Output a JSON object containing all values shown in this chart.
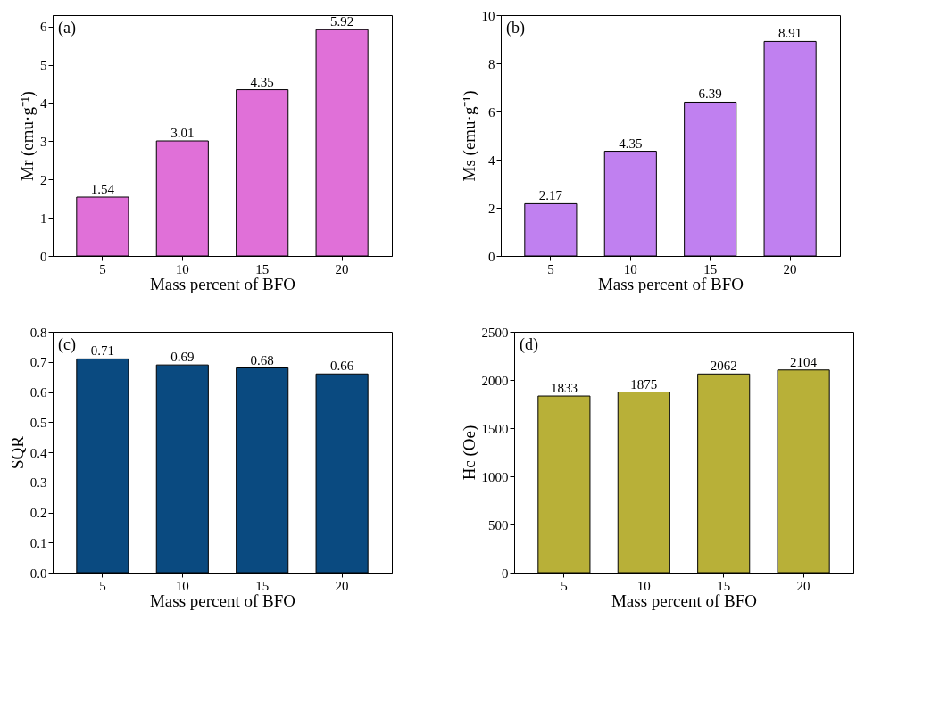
{
  "chart_data": [
    {
      "type": "bar",
      "categories": [
        "5",
        "10",
        "15",
        "20"
      ],
      "values": [
        1.54,
        3.01,
        4.35,
        5.92
      ],
      "color": "#e070d8",
      "xlabel": "Mass percent of BFO",
      "ylabel": "Mr (emu·g⁻¹)",
      "ylim": [
        0,
        6.3
      ],
      "yticks": [
        0,
        1,
        2,
        3,
        4,
        5,
        6
      ],
      "data_labels": true,
      "annotations": [
        "(a)"
      ]
    },
    {
      "type": "bar",
      "categories": [
        "5",
        "10",
        "15",
        "20"
      ],
      "values": [
        2.17,
        4.35,
        6.39,
        8.91
      ],
      "color": "#c080f0",
      "xlabel": "Mass percent of BFO",
      "ylabel": "Ms (emu·g⁻¹)",
      "ylim": [
        0,
        10
      ],
      "yticks": [
        0,
        2,
        4,
        6,
        8,
        10
      ],
      "data_labels": true,
      "annotations": [
        "(b)"
      ]
    },
    {
      "type": "bar",
      "categories": [
        "5",
        "10",
        "15",
        "20"
      ],
      "values": [
        0.71,
        0.69,
        0.68,
        0.66
      ],
      "color": "#0a4a80",
      "xlabel": "Mass percent of BFO",
      "ylabel": "SQR",
      "ylim": [
        0,
        0.8
      ],
      "yticks": [
        {
          "value": 0,
          "label": "0.0"
        },
        0.1,
        0.2,
        0.3,
        0.4,
        0.5,
        0.6,
        0.7,
        0.8
      ],
      "data_labels": true,
      "annotations": [
        "(c)"
      ]
    },
    {
      "type": "bar",
      "categories": [
        "5",
        "10",
        "15",
        "20"
      ],
      "values": [
        1833,
        1875,
        2062,
        2104
      ],
      "color": "#b8b038",
      "xlabel": "Mass percent of BFO",
      "ylabel": "Hc (Oe)",
      "ylim": [
        0,
        2500
      ],
      "yticks": [
        0,
        500,
        1000,
        1500,
        2000,
        2500
      ],
      "data_labels": true,
      "annotations": [
        "(d)"
      ]
    }
  ]
}
